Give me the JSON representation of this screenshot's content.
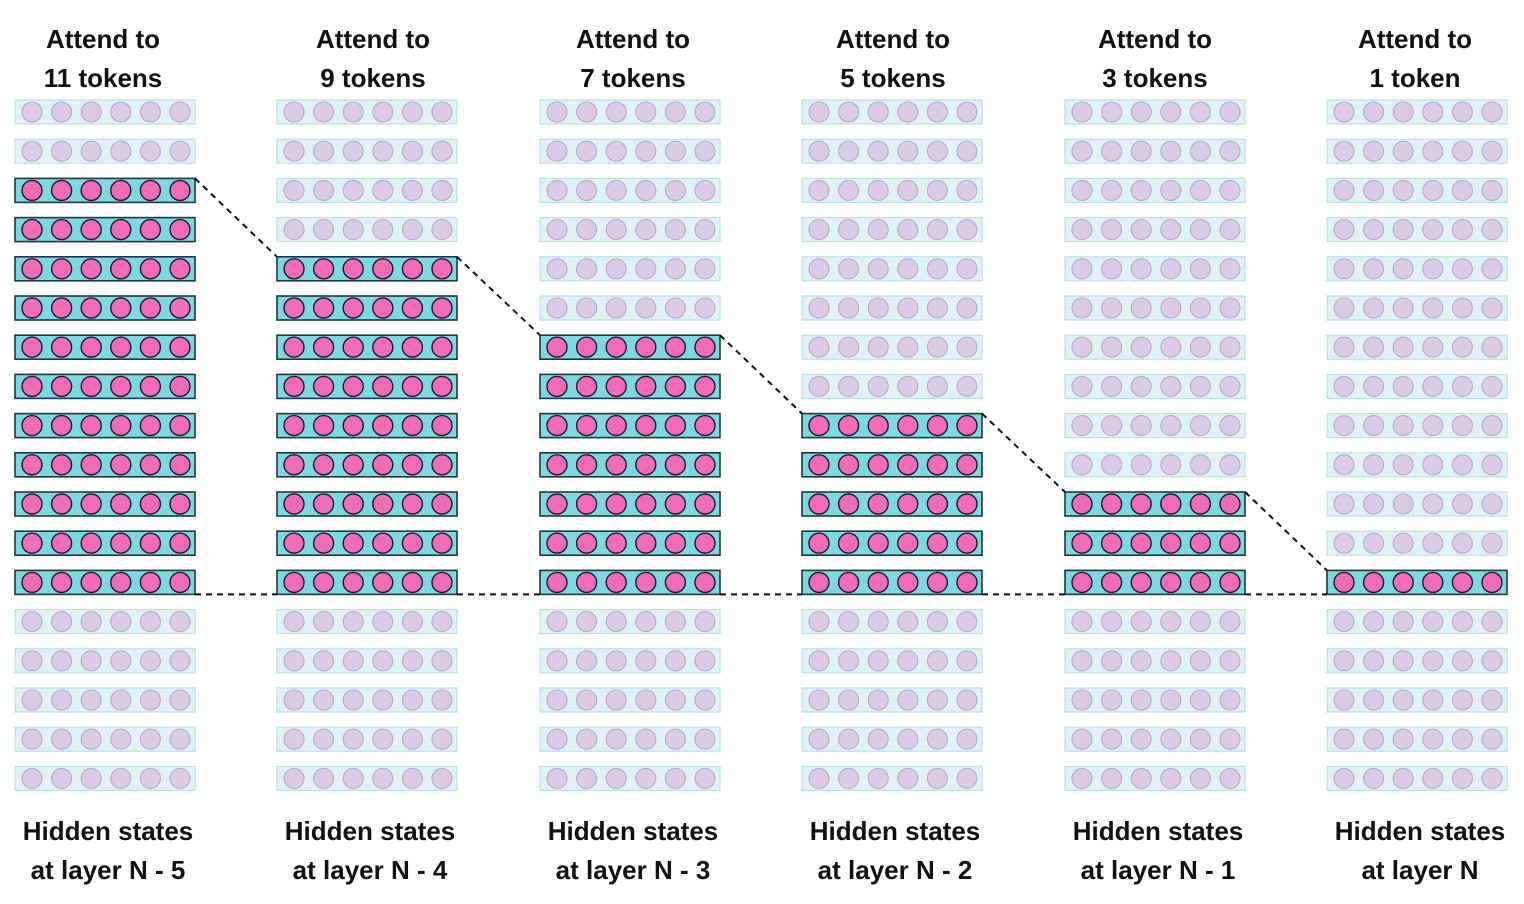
{
  "colors": {
    "active_box_fill": "#7dd8e0",
    "active_box_stroke": "#1a3a3f",
    "active_dot_fill": "#f06cb6",
    "active_dot_stroke": "#1a1a2e",
    "inactive_box_fill": "#dff3f5",
    "inactive_box_stroke": "#b9e1e6",
    "inactive_dot_fill": "#dccbe6",
    "inactive_dot_stroke": "#b9a8cc",
    "connector": "#111111",
    "text": "#111111"
  },
  "tokens_per_column": 18,
  "dims_per_token": 6,
  "query_token_index": 12,
  "columns": [
    {
      "title_line1": "Attend to",
      "title_line2": "11 tokens",
      "attended_tokens": 11,
      "caption_line1": "Hidden states",
      "caption_line2": "at layer N - 5"
    },
    {
      "title_line1": "Attend to",
      "title_line2": "9 tokens",
      "attended_tokens": 9,
      "caption_line1": "Hidden states",
      "caption_line2": "at layer N - 4"
    },
    {
      "title_line1": "Attend to",
      "title_line2": "7 tokens",
      "attended_tokens": 7,
      "caption_line1": "Hidden states",
      "caption_line2": "at layer N - 3"
    },
    {
      "title_line1": "Attend to",
      "title_line2": "5 tokens",
      "attended_tokens": 5,
      "caption_line1": "Hidden states",
      "caption_line2": "at layer N - 2"
    },
    {
      "title_line1": "Attend to",
      "title_line2": "3 tokens",
      "attended_tokens": 3,
      "caption_line1": "Hidden states",
      "caption_line2": "at layer N - 1"
    },
    {
      "title_line1": "Attend to",
      "title_line2": "1 token",
      "attended_tokens": 1,
      "caption_line1": "Hidden states",
      "caption_line2": "at layer N"
    }
  ]
}
